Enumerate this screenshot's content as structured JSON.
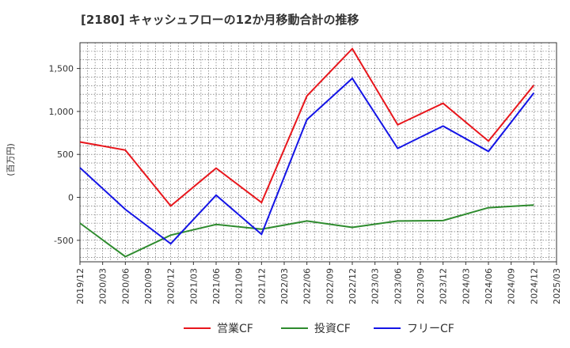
{
  "chart_data": {
    "type": "line",
    "title": "[2180]  キャッシュフローの12か月移動合計の推移",
    "ylabel": "(百万円)",
    "xlabel": "",
    "ylim": [
      -750,
      1800
    ],
    "yticks": [
      -500,
      0,
      500,
      1000,
      1500
    ],
    "ytick_labels": [
      "-500",
      "0",
      "500",
      "1,000",
      "1,500"
    ],
    "grid": true,
    "legend_position": "bottom",
    "x_ticks": [
      "2019/12",
      "2020/03",
      "2020/06",
      "2020/09",
      "2020/12",
      "2021/03",
      "2021/06",
      "2021/09",
      "2021/12",
      "2022/03",
      "2022/06",
      "2022/09",
      "2022/12",
      "2023/03",
      "2023/06",
      "2023/09",
      "2023/12",
      "2024/03",
      "2024/06",
      "2024/09",
      "2024/12",
      "2025/03"
    ],
    "x_points": [
      "2019/12",
      "2020/06",
      "2020/12",
      "2021/06",
      "2021/12",
      "2022/06",
      "2022/12",
      "2023/06",
      "2023/12",
      "2024/06",
      "2024/12"
    ],
    "series": [
      {
        "name": "営業CF",
        "color": "#e8161c",
        "values": [
          645,
          550,
          -100,
          340,
          -60,
          1180,
          1730,
          845,
          1095,
          655,
          1305
        ]
      },
      {
        "name": "投資CF",
        "color": "#2e8b2e",
        "values": [
          -300,
          -690,
          -440,
          -315,
          -370,
          -275,
          -350,
          -275,
          -270,
          -120,
          -90
        ]
      },
      {
        "name": "フリーCF",
        "color": "#1414e6",
        "values": [
          345,
          -140,
          -540,
          25,
          -430,
          905,
          1385,
          570,
          830,
          535,
          1215
        ]
      }
    ]
  }
}
